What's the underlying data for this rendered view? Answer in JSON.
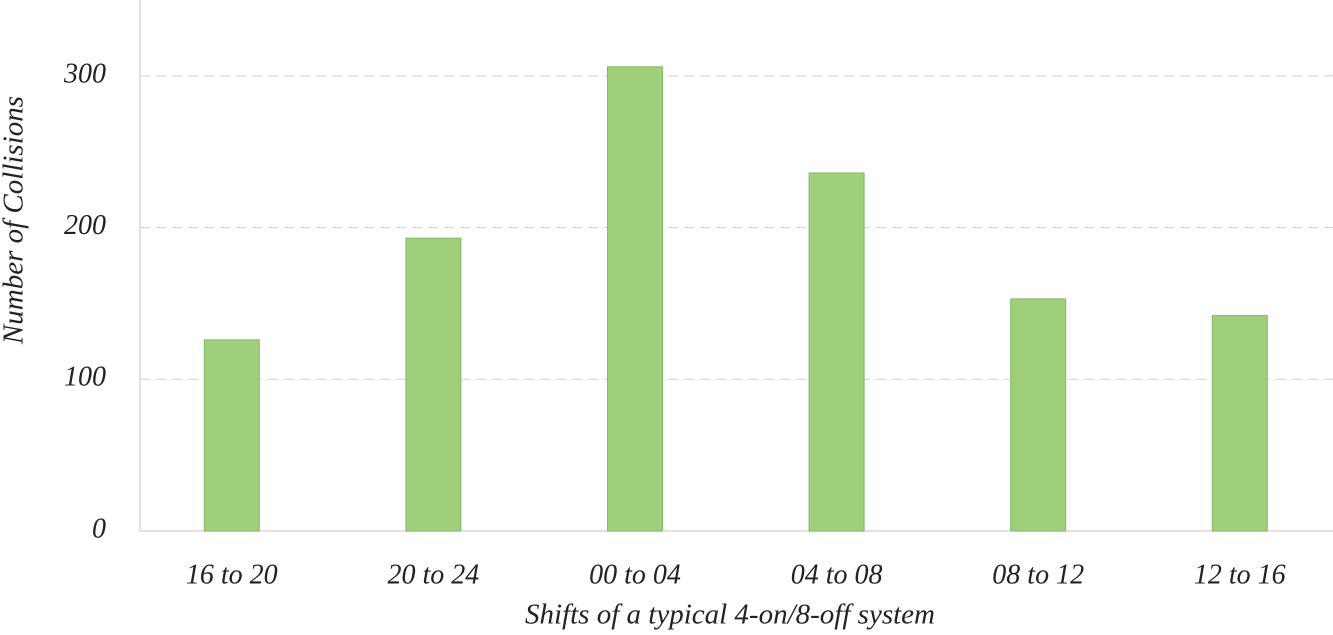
{
  "chart_data": {
    "type": "bar",
    "x_label": "Shifts of a typical 4-on/8-off system",
    "y_label": "Number of Collisions",
    "categories": [
      "16 to 20",
      "20 to 24",
      "00 to 04",
      "04 to 08",
      "08 to 12",
      "12 to 16"
    ],
    "values": [
      126,
      193,
      306,
      236,
      153,
      142
    ],
    "color": "#a0cf7c",
    "ylim": [
      0,
      350
    ],
    "yticks": [
      0,
      100,
      200,
      300
    ],
    "grid": true
  }
}
